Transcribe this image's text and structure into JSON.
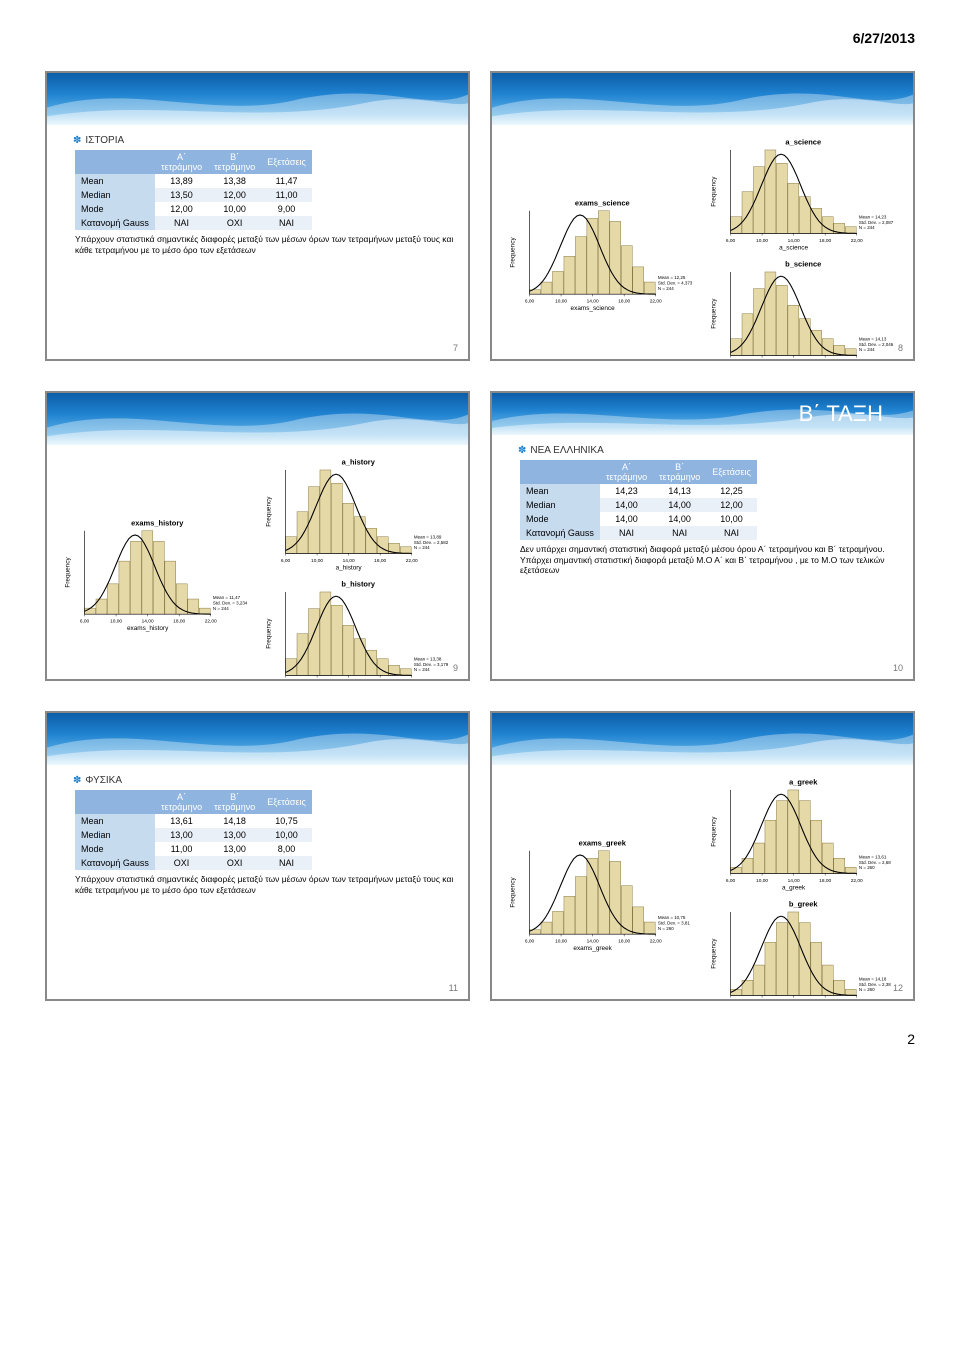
{
  "page_header": "6/27/2013",
  "footer_page": "2",
  "slides": {
    "s7": {
      "topic": "ΙΣΤΟΡΙΑ",
      "table": {
        "col_headers": [
          "Α΄\nτετράμηνο",
          "Β΄\nτετράμηνο",
          "Εξετάσεις"
        ],
        "rows": [
          {
            "label": "Mean",
            "cells": [
              "13,89",
              "13,38",
              "11,47"
            ]
          },
          {
            "label": "Median",
            "cells": [
              "13,50",
              "12,00",
              "11,00"
            ]
          },
          {
            "label": "Mode",
            "cells": [
              "12,00",
              "10,00",
              "9,00"
            ]
          },
          {
            "label": "Κατανομή Gauss",
            "cells": [
              "ΝΑΙ",
              "ΟΧΙ",
              "ΝΑΙ"
            ]
          }
        ]
      },
      "note": "Υπάρχουν στατιστικά σημαντικές διαφορές μεταξύ των μέσων όρων των τετραμήνων μεταξύ τους και κάθε τετραμήνου με το μέσο όρο των εξετάσεων"
    },
    "s8": {
      "charts": [
        {
          "title": "a_science",
          "xlabel": "a_science",
          "stats": "Mean = 14,23\nStd. Dev. = 2,087\nN = 244"
        },
        {
          "title": "b_science",
          "xlabel": "b_science",
          "stats": "Mean = 14,13\nStd. Dev. = 2,046\nN = 244"
        },
        {
          "title": "exams_science",
          "xlabel": "exams_science",
          "stats": "Mean = 12,25\nStd. Dev. = 4,373\nN = 244"
        }
      ]
    },
    "s9": {
      "charts": [
        {
          "title": "a_history",
          "xlabel": "a_history",
          "stats": "Mean = 13,89\nStd. Dev. = 2,582\nN = 244"
        },
        {
          "title": "b_history",
          "xlabel": "b_history",
          "stats": "Mean = 13,38\nStd. Dev. = 3,179\nN = 244"
        },
        {
          "title": "exams_history",
          "xlabel": "exams_history",
          "stats": "Mean = 11,47\nStd. Dev. = 3,234\nN = 244"
        }
      ]
    },
    "s10": {
      "section_title": "Β΄ ΤΑΞΗ",
      "topic": "ΝΕΑ ΕΛΛΗΝΙΚΑ",
      "table": {
        "col_headers": [
          "Α΄\nτετράμηνο",
          "Β΄\nτετράμηνο",
          "Εξετάσεις"
        ],
        "rows": [
          {
            "label": "Mean",
            "cells": [
              "14,23",
              "14,13",
              "12,25"
            ]
          },
          {
            "label": "Median",
            "cells": [
              "14,00",
              "14,00",
              "12,00"
            ]
          },
          {
            "label": "Mode",
            "cells": [
              "14,00",
              "14,00",
              "10,00"
            ]
          },
          {
            "label": "Κατανομή Gauss",
            "cells": [
              "ΝΑΙ",
              "ΝΑΙ",
              "ΝΑΙ"
            ]
          }
        ]
      },
      "note": "Δεν υπάρχει σημαντική στατιστική διαφορά μεταξύ μέσου όρου Α΄ τετραμήνου και Β΄ τετραμήνου. Υπάρχει σημαντική στατιστική διαφορά μεταξύ Μ.Ο Α΄ και Β΄ τετραμήνου , με το Μ.Ο των τελικών εξετάσεων"
    },
    "s11": {
      "topic": "ΦΥΣΙΚΑ",
      "table": {
        "col_headers": [
          "Α΄\nτετράμηνο",
          "Β΄\nτετράμηνο",
          "Εξετάσεις"
        ],
        "rows": [
          {
            "label": "Mean",
            "cells": [
              "13,61",
              "14,18",
              "10,75"
            ]
          },
          {
            "label": "Median",
            "cells": [
              "13,00",
              "13,00",
              "10,00"
            ]
          },
          {
            "label": "Mode",
            "cells": [
              "11,00",
              "13,00",
              "8,00"
            ]
          },
          {
            "label": "Κατανομή Gauss",
            "cells": [
              "ΟΧΙ",
              "ΟΧΙ",
              "ΝΑΙ"
            ]
          }
        ]
      },
      "note": "Υπάρχουν στατιστικά σημαντικές διαφορές μεταξύ των μέσων όρων των τετραμήνων μεταξύ τους και κάθε τετραμήνου με το μέσο όρο των εξετάσεων"
    },
    "s12": {
      "charts": [
        {
          "title": "a_greek",
          "xlabel": "a_greek",
          "stats": "Mean = 13,61\nStd. Dev. = 2,68\nN = 260"
        },
        {
          "title": "b_greek",
          "xlabel": "b_greek",
          "stats": "Mean = 14,18\nStd. Dev. = 2,38\nN = 260"
        },
        {
          "title": "exams_greek",
          "xlabel": "exams_greek",
          "stats": "Mean = 10,75\nStd. Dev. = 3,81\nN = 260"
        }
      ]
    }
  },
  "hist_style": {
    "bar_fill": "#e6d9a8",
    "bar_stroke": "#7a6a2e",
    "curve": "#000000",
    "axis": "#000000",
    "bg": "#ffffff",
    "title_fontsize": 7,
    "label_fontsize": 6
  },
  "hist_shapes": {
    "left_skew": [
      10,
      25,
      40,
      50,
      42,
      30,
      22,
      15,
      10,
      6,
      4
    ],
    "normal": [
      4,
      10,
      20,
      35,
      48,
      55,
      48,
      35,
      20,
      10,
      4
    ],
    "right_heavy": [
      3,
      8,
      15,
      25,
      38,
      50,
      55,
      48,
      32,
      18,
      8
    ]
  }
}
